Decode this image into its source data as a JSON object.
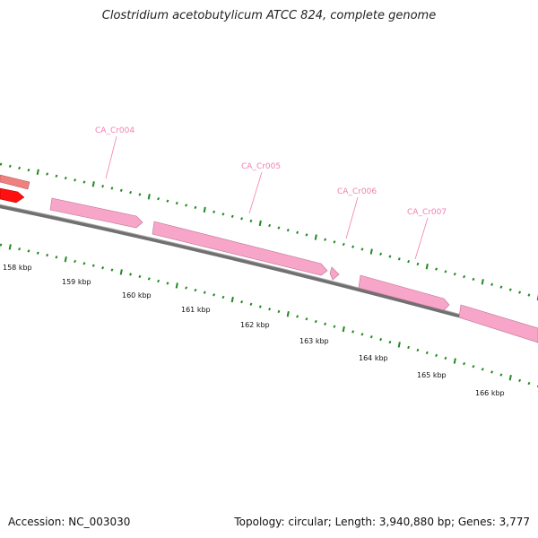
{
  "title": "Clostridium acetobutylicum ATCC 824, complete genome",
  "footer": {
    "accession": "Accession: NC_003030",
    "summary": "Topology: circular; Length: 3,940,880 bp; Genes: 3,777"
  },
  "colors": {
    "gene_pink": "#f7a6c9",
    "gene_red": "#ff0000",
    "gene_salmon": "#ef8080",
    "backbone": "#808080",
    "tick_green": "#228822",
    "label_pink": "#f080b0"
  },
  "genes": [
    {
      "label": "CA_Cr004"
    },
    {
      "label": "CA_Cr005"
    },
    {
      "label": "CA_Cr006"
    },
    {
      "label": "CA_Cr007"
    }
  ],
  "kbp_labels": [
    "158 kbp",
    "159 kbp",
    "160 kbp",
    "161 kbp",
    "162 kbp",
    "163 kbp",
    "164 kbp",
    "165 kbp",
    "166 kbp"
  ]
}
